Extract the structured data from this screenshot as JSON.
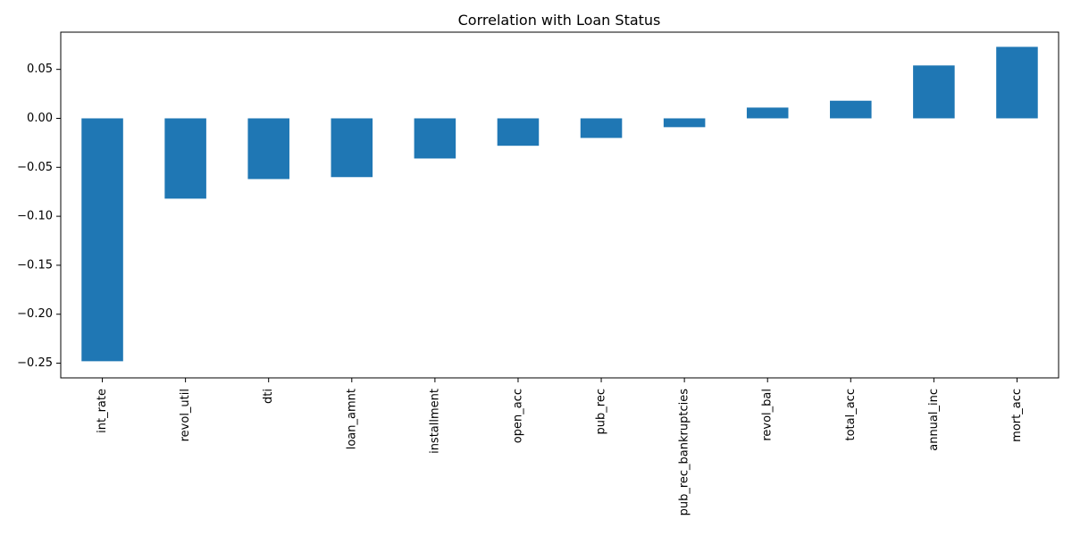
{
  "chart_data": {
    "type": "bar",
    "title": "Correlation with Loan Status",
    "xlabel": "",
    "ylabel": "",
    "categories": [
      "int_rate",
      "revol_util",
      "dti",
      "loan_amnt",
      "installment",
      "open_acc",
      "pub_rec",
      "pub_rec_bankruptcies",
      "revol_bal",
      "total_acc",
      "annual_inc",
      "mort_acc"
    ],
    "values": [
      -0.248,
      -0.082,
      -0.062,
      -0.06,
      -0.041,
      -0.028,
      -0.02,
      -0.009,
      0.011,
      0.018,
      0.054,
      0.073
    ],
    "ylim": [
      -0.265,
      0.088
    ],
    "yticks": [
      -0.25,
      -0.2,
      -0.15,
      -0.1,
      -0.05,
      0.0,
      0.05
    ],
    "ytick_labels": [
      "−0.25",
      "−0.20",
      "−0.15",
      "−0.10",
      "−0.05",
      "0.00",
      "0.05"
    ],
    "bar_color": "#1f77b4",
    "grid": false,
    "legend": "none"
  }
}
